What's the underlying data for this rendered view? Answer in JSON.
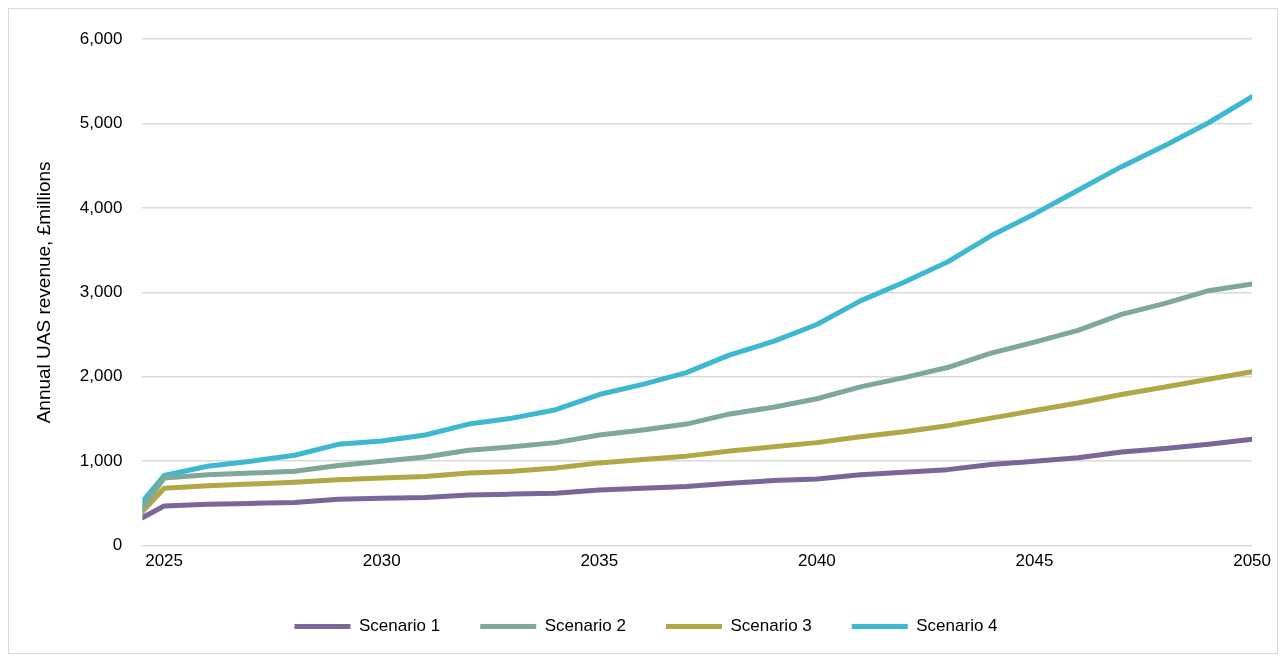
{
  "chart_data": {
    "type": "line",
    "ylabel": "Annual UAS revenue, £millions",
    "x": [
      2024.5,
      2025,
      2026,
      2027,
      2028,
      2029,
      2030,
      2031,
      2032,
      2033,
      2034,
      2035,
      2036,
      2037,
      2038,
      2039,
      2040,
      2041,
      2042,
      2043,
      2044,
      2045,
      2046,
      2047,
      2048,
      2049,
      2050
    ],
    "xlim": [
      2024.5,
      2050
    ],
    "xticks": [
      2025,
      2030,
      2035,
      2040,
      2045,
      2050
    ],
    "ylim": [
      0,
      6000
    ],
    "yticks": [
      {
        "value": 0,
        "label": "0"
      },
      {
        "value": 1000,
        "label": "1,000"
      },
      {
        "value": 2000,
        "label": "2,000"
      },
      {
        "value": 3000,
        "label": "3,000"
      },
      {
        "value": 4000,
        "label": "4,000"
      },
      {
        "value": 5000,
        "label": "5,000"
      },
      {
        "value": 6000,
        "label": "6,000"
      }
    ],
    "grid": "y",
    "legend": "bottom",
    "marker": "none",
    "line_style": "solid",
    "series": [
      {
        "name": "Scenario 1",
        "color": "#7a6698",
        "values": [
          330,
          470,
          490,
          500,
          510,
          550,
          560,
          570,
          600,
          610,
          620,
          660,
          680,
          700,
          740,
          770,
          790,
          840,
          870,
          900,
          960,
          1000,
          1040,
          1110,
          1150,
          1200,
          1260
        ]
      },
      {
        "name": "Scenario 2",
        "color": "#7ea898",
        "values": [
          440,
          800,
          840,
          860,
          880,
          950,
          1000,
          1050,
          1130,
          1170,
          1220,
          1310,
          1370,
          1440,
          1560,
          1640,
          1740,
          1880,
          1990,
          2110,
          2280,
          2410,
          2550,
          2740,
          2870,
          3020,
          3100
        ]
      },
      {
        "name": "Scenario 3",
        "color": "#b0a846",
        "values": [
          400,
          680,
          710,
          730,
          750,
          780,
          800,
          820,
          860,
          880,
          920,
          980,
          1020,
          1060,
          1120,
          1170,
          1220,
          1290,
          1350,
          1420,
          1510,
          1600,
          1690,
          1790,
          1880,
          1970,
          2060
        ]
      },
      {
        "name": "Scenario 4",
        "color": "#3db8d0",
        "values": [
          520,
          830,
          940,
          1000,
          1070,
          1200,
          1240,
          1310,
          1440,
          1510,
          1610,
          1790,
          1910,
          2050,
          2260,
          2420,
          2620,
          2900,
          3120,
          3360,
          3670,
          3930,
          4210,
          4490,
          4740,
          5010,
          5320
        ]
      }
    ]
  }
}
